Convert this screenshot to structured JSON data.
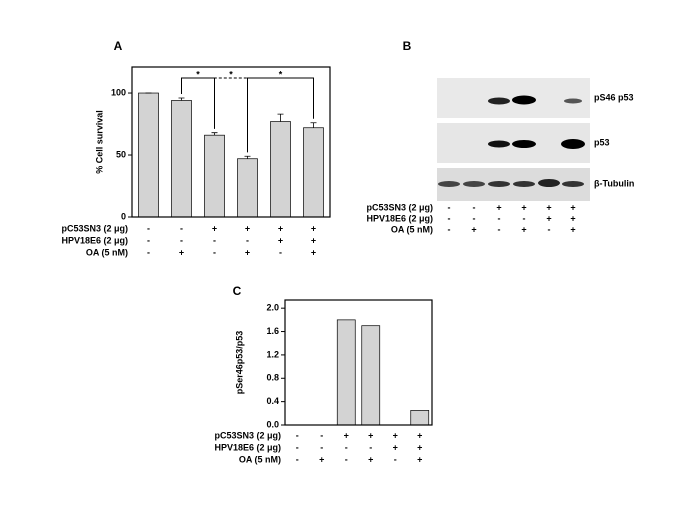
{
  "chart_data": [
    {
      "type": "bar",
      "panel": "A",
      "y_label": "% Cell survival",
      "values": [
        100,
        94,
        66,
        47,
        77,
        72
      ],
      "errors": [
        0,
        2,
        2,
        2,
        6,
        4
      ],
      "color": "#d3d3d3",
      "ylim": [
        0,
        121
      ],
      "yticks": [
        0,
        50,
        100
      ],
      "error_bars": true,
      "conditions": [
        {
          "name": "pC53SN3 (2 μg)",
          "values": [
            "-",
            "-",
            "+",
            "+",
            "+",
            "+"
          ]
        },
        {
          "name": "HPV18E6 (2 μg)",
          "values": [
            "-",
            "-",
            "-",
            "-",
            "+",
            "+"
          ]
        },
        {
          "name": "OA (5 nM)",
          "values": [
            "-",
            "+",
            "-",
            "+",
            "-",
            "+"
          ]
        }
      ],
      "comparisons": [
        {
          "bars": [
            1,
            2
          ],
          "label": "*",
          "dashed": false
        },
        {
          "bars": [
            2,
            3
          ],
          "label": "*",
          "dashed": true
        },
        {
          "bars": [
            3,
            5
          ],
          "label": "*",
          "dashed": false
        }
      ]
    },
    {
      "type": "bar",
      "panel": "C",
      "y_label": "pSer46p53/p53",
      "values": [
        0,
        0,
        1.8,
        1.7,
        0,
        0.25
      ],
      "color": "#d3d3d3",
      "ylim": [
        0,
        2.14
      ],
      "yticks": [
        {
          "value": 0,
          "label": "0.0"
        },
        0.4,
        0.8,
        1.2,
        1.6,
        {
          "value": 2,
          "label": "2.0"
        }
      ],
      "conditions": [
        {
          "name": "pC53SN3 (2 μg)",
          "values": [
            "-",
            "-",
            "+",
            "+",
            "+",
            "+"
          ]
        },
        {
          "name": "HPV18E6 (2 μg)",
          "values": [
            "-",
            "-",
            "-",
            "-",
            "+",
            "+"
          ]
        },
        {
          "name": "OA (5 nM)",
          "values": [
            "-",
            "+",
            "-",
            "+",
            "-",
            "+"
          ]
        }
      ]
    }
  ],
  "blot": {
    "panel": "B",
    "rows": [
      "pS46 p53",
      "p53",
      "β-Tubulin"
    ],
    "conditions": [
      {
        "name": "pC53SN3 (2 μg)",
        "values": [
          "-",
          "-",
          "+",
          "+",
          "+",
          "+"
        ]
      },
      {
        "name": "HPV18E6 (2 μg)",
        "values": [
          "-",
          "-",
          "-",
          "-",
          "+",
          "+"
        ]
      },
      {
        "name": "OA (5 nM)",
        "values": [
          "-",
          "+",
          "-",
          "+",
          "-",
          "+"
        ]
      }
    ]
  }
}
